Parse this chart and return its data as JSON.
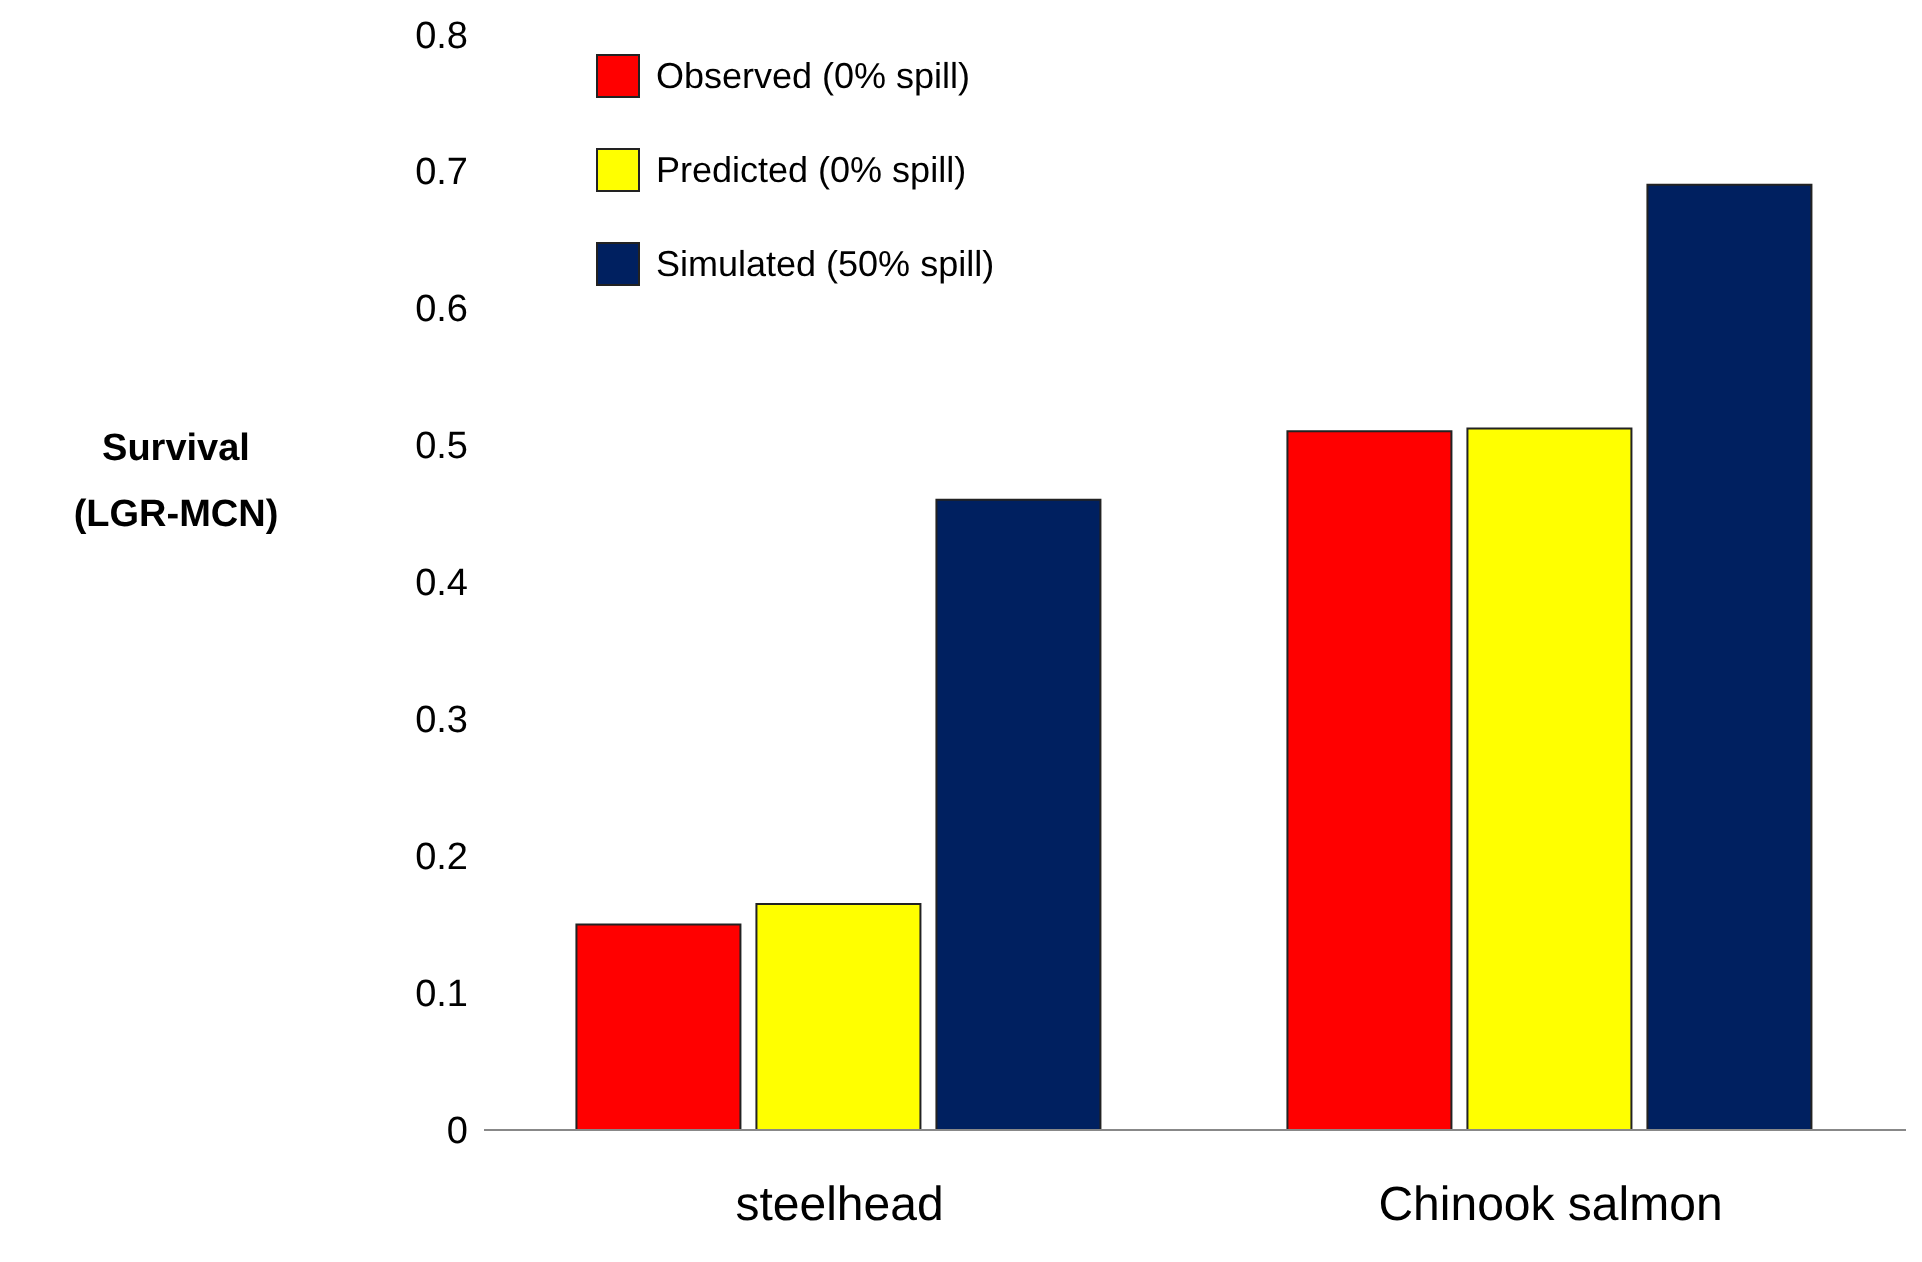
{
  "chart_data": {
    "type": "bar",
    "ylabel": "Survival (LGR-MCN)",
    "categories": [
      "steelhead",
      "Chinook salmon"
    ],
    "series": [
      {
        "name": "Observed (0% spill)",
        "color": "#ff0000",
        "values": [
          0.15,
          0.51
        ]
      },
      {
        "name": "Predicted (0% spill)",
        "color": "#ffff00",
        "values": [
          0.165,
          0.512
        ]
      },
      {
        "name": "Simulated (50% spill)",
        "color": "#002060",
        "values": [
          0.46,
          0.69
        ]
      }
    ],
    "ylim": [
      0,
      0.8
    ],
    "yticks": [
      0,
      0.1,
      0.2,
      0.3,
      0.4,
      0.5,
      0.6,
      0.7,
      0.8
    ],
    "grid": false,
    "legend": "top left"
  }
}
